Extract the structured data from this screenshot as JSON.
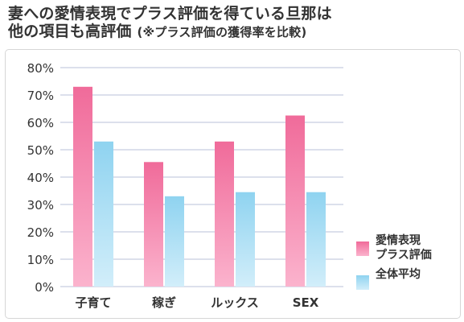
{
  "title": {
    "line1": "妻への愛情表現でプラス評価を得ている旦那は",
    "line2_main": "他の項目も高評価",
    "line2_sub": "(※プラス評価の獲得率を比較)"
  },
  "chart_data": {
    "type": "bar",
    "categories": [
      "子育て",
      "稼ぎ",
      "ルックス",
      "SEX"
    ],
    "series": [
      {
        "name": "愛情表現\nプラス評価",
        "values": [
          73,
          45.5,
          53,
          62.5
        ],
        "color": "#f06b9a"
      },
      {
        "name": "全体平均",
        "values": [
          53,
          33,
          34.5,
          34.5
        ],
        "color": "#8fd3f0"
      }
    ],
    "yticks": [
      "0%",
      "10%",
      "20%",
      "30%",
      "40%",
      "50%",
      "60%",
      "70%",
      "80%"
    ],
    "ylim": [
      0,
      80
    ],
    "grid": true,
    "legend": "bottom-right"
  },
  "colors": {
    "series1_top": "#f06b9a",
    "series1_bottom": "#fbb3cd",
    "series2_top": "#8fd3f0",
    "series2_bottom": "#d2eefa",
    "grid": "#b8c2d8"
  }
}
